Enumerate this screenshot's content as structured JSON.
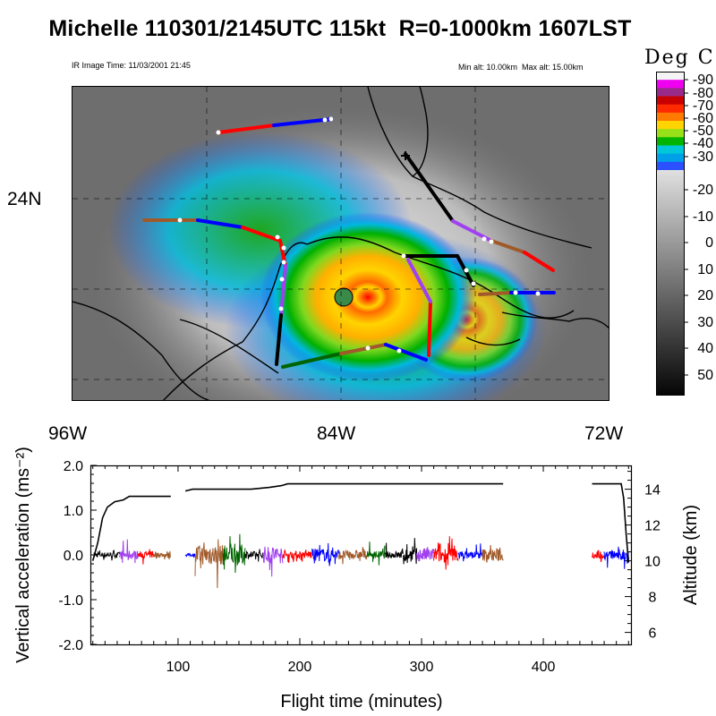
{
  "title": "Michelle 110301/2145UTC 115kt  R=0-1000km 1607LST",
  "subtitle_left": "IR Image Time: 11/03/2001 21:45",
  "subtitle_right": "Min alt: 10.00km  Max alt: 15.00km",
  "colorbar": {
    "title": "Deg C",
    "labels": [
      "-90",
      "-80",
      "-70",
      "-60",
      "-50",
      "-40",
      "-30",
      "-20",
      "-10",
      "0",
      "10",
      "20",
      "30",
      "40",
      "50"
    ],
    "enhanced_colors": [
      "#f4f4f4",
      "#f000f0",
      "#9a2a8a",
      "#c80000",
      "#ff2a00",
      "#ff7a00",
      "#ffd400",
      "#98e018",
      "#00b400",
      "#00c8d8",
      "#00a0e8",
      "#2a50ff"
    ],
    "gray_top": "#e0e0e0",
    "gray_bottom": "#050505"
  },
  "map": {
    "lat_label": "24N",
    "lon_labels": [
      "96W",
      "84W",
      "72W"
    ],
    "flight_track_colors": [
      "#000000",
      "#a040f0",
      "#ff0000",
      "#a05a2a",
      "#006400",
      "#0000ff"
    ]
  },
  "chart_data": {
    "type": "line",
    "xlabel": "Flight time (minutes)",
    "ylabel": "Vertical acceleration (ms⁻²)",
    "y2label": "Altitude (km)",
    "xlim": [
      28,
      472
    ],
    "xticks": [
      100,
      200,
      300,
      400
    ],
    "ylim": [
      -2.0,
      2.0
    ],
    "yticks": [
      "2.0",
      "1.0",
      "0.0",
      "-1.0",
      "-2.0"
    ],
    "y2lim": [
      5.33,
      15.33
    ],
    "y2ticks": [
      6,
      8,
      10,
      12,
      14
    ],
    "altitude_series": [
      {
        "x": [
          30,
          34,
          38,
          42,
          48,
          55,
          60,
          70,
          80,
          94
        ],
        "y": [
          10.0,
          11.0,
          12.4,
          13.0,
          13.3,
          13.4,
          13.6,
          13.6,
          13.6,
          13.6
        ]
      },
      {
        "x": [
          106,
          112,
          120,
          130,
          140,
          160,
          175,
          185,
          190,
          210,
          230,
          250,
          270,
          290,
          310,
          330,
          350,
          367
        ],
        "y": [
          13.9,
          14.0,
          14.0,
          14.0,
          14.0,
          14.0,
          14.1,
          14.2,
          14.3,
          14.3,
          14.3,
          14.3,
          14.3,
          14.3,
          14.3,
          14.3,
          14.3,
          14.3
        ]
      },
      {
        "x": [
          440,
          450,
          460,
          464,
          466,
          468,
          470
        ],
        "y": [
          14.3,
          14.3,
          14.3,
          14.3,
          13.5,
          11.5,
          9.9
        ]
      }
    ],
    "accel_segments": [
      {
        "x": [
          31,
          52
        ],
        "color": "#000000",
        "amp": 0.22
      },
      {
        "x": [
          52,
          67
        ],
        "color": "#a040f0",
        "amp": 0.35
      },
      {
        "x": [
          67,
          80
        ],
        "color": "#ff0000",
        "amp": 0.25
      },
      {
        "x": [
          80,
          94
        ],
        "color": "#a05a2a",
        "amp": 0.2
      },
      {
        "x": [
          106,
          114
        ],
        "color": "#0000ff",
        "amp": 0.12
      },
      {
        "x": [
          114,
          137
        ],
        "color": "#a05a2a",
        "amp": 0.8
      },
      {
        "x": [
          137,
          155
        ],
        "color": "#006400",
        "amp": 0.85
      },
      {
        "x": [
          155,
          170
        ],
        "color": "#000000",
        "amp": 0.28
      },
      {
        "x": [
          170,
          186
        ],
        "color": "#a040f0",
        "amp": 0.7
      },
      {
        "x": [
          186,
          210
        ],
        "color": "#ff0000",
        "amp": 0.3
      },
      {
        "x": [
          210,
          232
        ],
        "color": "#0000ff",
        "amp": 0.5
      },
      {
        "x": [
          232,
          255
        ],
        "color": "#a05a2a",
        "amp": 0.35
      },
      {
        "x": [
          255,
          270
        ],
        "color": "#006400",
        "amp": 0.3
      },
      {
        "x": [
          270,
          285
        ],
        "color": "#000000",
        "amp": 0.28
      },
      {
        "x": [
          285,
          296
        ],
        "color": "#000000",
        "amp": 0.55
      },
      {
        "x": [
          296,
          310
        ],
        "color": "#a040f0",
        "amp": 0.55
      },
      {
        "x": [
          310,
          330
        ],
        "color": "#ff0000",
        "amp": 0.6
      },
      {
        "x": [
          330,
          350
        ],
        "color": "#0000ff",
        "amp": 0.3
      },
      {
        "x": [
          350,
          367
        ],
        "color": "#a05a2a",
        "amp": 0.5
      },
      {
        "x": [
          440,
          450
        ],
        "color": "#ff0000",
        "amp": 0.3
      },
      {
        "x": [
          450,
          462
        ],
        "color": "#0000ff",
        "amp": 0.35
      },
      {
        "x": [
          462,
          470
        ],
        "color": "#0000ff",
        "amp": 0.5
      }
    ]
  }
}
